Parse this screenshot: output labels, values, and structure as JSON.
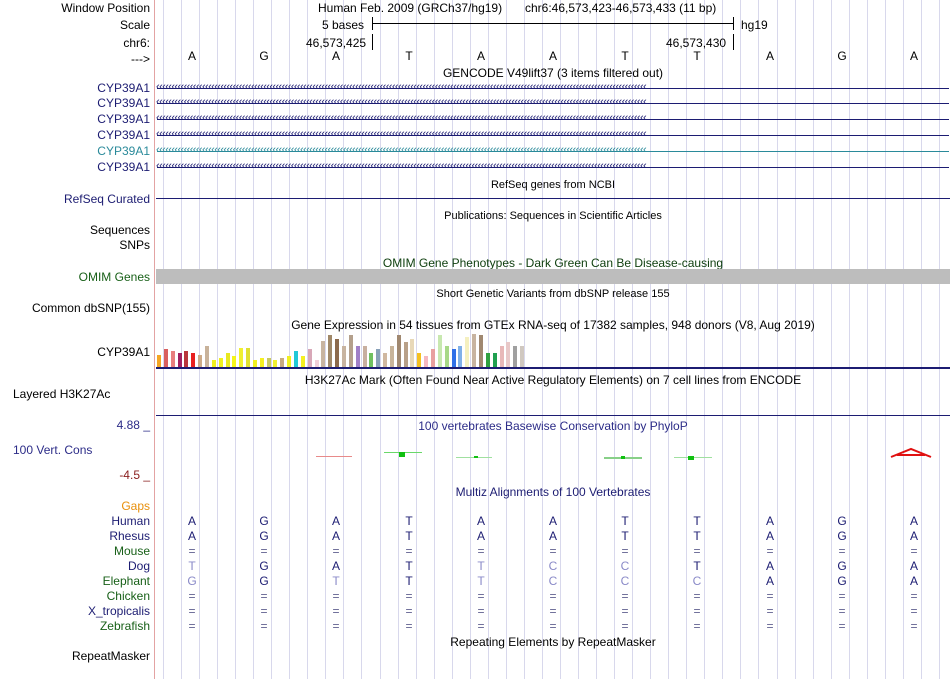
{
  "left_labels": {
    "window_position": "Window Position",
    "scale": "Scale",
    "chr": "chr6:",
    "arrow": "--->",
    "genes": [
      "CYP39A1",
      "CYP39A1",
      "CYP39A1",
      "CYP39A1",
      "CYP39A1",
      "CYP39A1"
    ],
    "refseq": "RefSeq Curated",
    "sequences": "Sequences",
    "snps": "SNPs",
    "omim": "OMIM Genes",
    "dbsnp": "Common dbSNP(155)",
    "gtex_gene": "CYP39A1",
    "h3k27ac": "Layered H3K27Ac",
    "phylop_max": "4.88 _",
    "phylop_label": "100 Vert. Cons",
    "phylop_min": "-4.5 _",
    "gaps": "Gaps",
    "species": [
      "Human",
      "Rhesus",
      "Mouse",
      "Dog",
      "Elephant",
      "Chicken",
      "X_tropicalis",
      "Zebrafish"
    ],
    "repeatmasker": "RepeatMasker"
  },
  "ruler": {
    "assembly_title": "Human Feb. 2009 (GRCh37/hg19)",
    "position": "chr6:46,573,423-46,573,433 (11 bp)",
    "scale_text": "5 bases",
    "db": "hg19",
    "pos_left": "46,573,425",
    "pos_right": "46,573,430",
    "bases": [
      "A",
      "G",
      "A",
      "T",
      "A",
      "A",
      "T",
      "T",
      "A",
      "G",
      "A"
    ]
  },
  "tracks": {
    "gencode_title": "GENCODE V49lift37 (3 items filtered out)",
    "refseq_title": "RefSeq genes from NCBI",
    "publications_title": "Publications: Sequences in Scientific Articles",
    "omim_title": "OMIM Gene Phenotypes - Dark Green Can Be Disease-causing",
    "dbsnp_title": "Short Genetic Variants from dbSNP release 155",
    "gtex_title": "Gene Expression in 54 tissues from GTEx RNA-seq of 17382 samples, 948 donors (V8, Aug 2019)",
    "h3k27ac_title": "H3K27Ac Mark (Often Found Near Active Regulatory Elements) on 7 cell lines from ENCODE",
    "phylop_title": "100 vertebrates Basewise Conservation by PhyloP",
    "multiz_title": "Multiz Alignments of 100 Vertebrates",
    "repeatmasker_title": "Repeating Elements by RepeatMasker"
  },
  "alignments": [
    [
      "A",
      "G",
      "A",
      "T",
      "A",
      "A",
      "T",
      "T",
      "A",
      "G",
      "A"
    ],
    [
      "A",
      "G",
      "A",
      "T",
      "A",
      "A",
      "T",
      "T",
      "A",
      "G",
      "A"
    ],
    [
      "=",
      "=",
      "=",
      "=",
      "=",
      "=",
      "=",
      "=",
      "=",
      "=",
      "="
    ],
    [
      "T",
      "G",
      "A",
      "T",
      "T",
      "C",
      "C",
      "T",
      "A",
      "G",
      "A"
    ],
    [
      "G",
      "G",
      "T",
      "T",
      "T",
      "C",
      "C",
      "C",
      "A",
      "G",
      "A"
    ],
    [
      "=",
      "=",
      "=",
      "=",
      "=",
      "=",
      "=",
      "=",
      "=",
      "=",
      "="
    ],
    [
      "=",
      "=",
      "=",
      "=",
      "=",
      "=",
      "=",
      "=",
      "=",
      "=",
      "="
    ],
    [
      "=",
      "=",
      "=",
      "=",
      "=",
      "=",
      "=",
      "=",
      "=",
      "=",
      "="
    ]
  ],
  "gtex_values": [
    0.35,
    0.5,
    0.45,
    0.4,
    0.45,
    0.4,
    0.35,
    0.6,
    0.2,
    0.25,
    0.4,
    0.3,
    0.55,
    0.55,
    0.2,
    0.25,
    0.25,
    0.2,
    0.25,
    0.3,
    0.45,
    0.3,
    0.5,
    0.2,
    0.75,
    0.9,
    0.8,
    0.6,
    0.9,
    0.6,
    0.6,
    0.4,
    0.5,
    0.4,
    0.6,
    0.9,
    0.7,
    0.8,
    0.4,
    0.3,
    0.5,
    0.9,
    0.6,
    0.5,
    0.6,
    0.85,
    0.95,
    0.9,
    0.4,
    0.4,
    0.6,
    0.7,
    0.6,
    0.6
  ],
  "gtex_colors": [
    "#f5a623",
    "#d95f5f",
    "#e87f7f",
    "#a02060",
    "#b8363c",
    "#e82020",
    "#ccaa88",
    "#c8b29a",
    "#f0f020",
    "#f0f020",
    "#e8e820",
    "#f5f51a",
    "#f0f030",
    "#e0e030",
    "#f0f020",
    "#f5f020",
    "#c8c860",
    "#f0f030",
    "#c8aa80",
    "#f0f020",
    "#20c8d8",
    "#f5f020",
    "#d8a8b8",
    "#f0d0d8",
    "#c8b4a0",
    "#a08868",
    "#8c6a4c",
    "#c8b4a0",
    "#b4a08c",
    "#a080c8",
    "#c8b0a0",
    "#70c060",
    "#88a0b8",
    "#d0b8a0",
    "#c8b49a",
    "#a08870",
    "#b8a088",
    "#e8d8b8",
    "#f5c020",
    "#f5b8c0",
    "#e8a0a0",
    "#c8e8b0",
    "#a8d888",
    "#3070e8",
    "#80b0e8",
    "#f5f0c0",
    "#c8b4a0",
    "#a08870",
    "#30a040",
    "#20a050",
    "#e8b8b8",
    "#e8c8c8",
    "#a0a0a0",
    "#d0c8c0"
  ],
  "colors": {
    "navy": "#1c1c72",
    "teal": "#2a8a9a",
    "green_label": "#186018",
    "omim_title": "#104010",
    "gaps": "#e8900c",
    "phylop_max": "#2c2c88",
    "phylop_min": "#8a1c1c",
    "mouse": "#606090"
  }
}
